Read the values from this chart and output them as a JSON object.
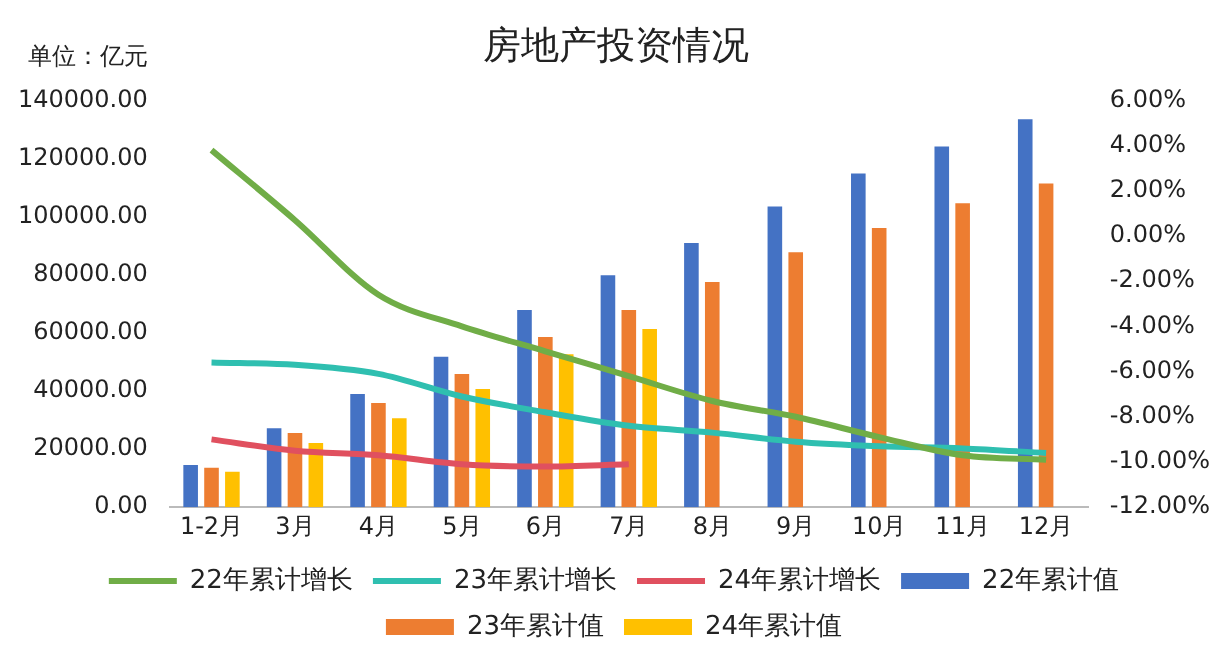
{
  "chart_data": {
    "type": "bar",
    "title": "房地产投资情况",
    "annotations": [
      "单位：亿元"
    ],
    "categories": [
      "1-2月",
      "3月",
      "4月",
      "5月",
      "6月",
      "7月",
      "8月",
      "9月",
      "10月",
      "11月",
      "12月"
    ],
    "series": [
      {
        "name": "22年累计值",
        "color": "#4472c4",
        "values": [
          14500,
          27200,
          39000,
          51800,
          67900,
          79800,
          90900,
          103500,
          114800,
          124100,
          133500
        ]
      },
      {
        "name": "23年累计值",
        "color": "#ed7d31",
        "values": [
          13600,
          25500,
          35900,
          45800,
          58600,
          67900,
          77500,
          87700,
          96100,
          104600,
          111400
        ]
      },
      {
        "name": "24年累计值",
        "color": "#ffc000",
        "values": [
          12200,
          22100,
          30600,
          40700,
          52600,
          61300,
          null,
          null,
          null,
          null,
          null
        ]
      },
      {
        "name": "22年累计增长",
        "type": "line",
        "axis": "y2",
        "color": "#70ad47",
        "values": [
          3.8,
          0.7,
          -2.6,
          -4.0,
          -5.1,
          -6.2,
          -7.3,
          -8.0,
          -8.9,
          -9.7,
          -9.9
        ]
      },
      {
        "name": "23年累计增长",
        "type": "line",
        "axis": "y2",
        "color": "#2fbfb0",
        "values": [
          -5.6,
          -5.7,
          -6.1,
          -7.1,
          -7.8,
          -8.4,
          -8.7,
          -9.1,
          -9.3,
          -9.4,
          -9.6
        ]
      },
      {
        "name": "24年累计增长",
        "type": "line",
        "axis": "y2",
        "color": "#e0505f",
        "values": [
          -9.0,
          -9.5,
          -9.7,
          -10.1,
          -10.2,
          -10.1,
          null,
          null,
          null,
          null,
          null
        ]
      }
    ],
    "ylim": [
      0,
      140000
    ],
    "yticks": [
      {
        "value": 0,
        "label": "0.00"
      },
      {
        "value": 20000,
        "label": "20000.00"
      },
      {
        "value": 40000,
        "label": "40000.00"
      },
      {
        "value": 60000,
        "label": "60000.00"
      },
      {
        "value": 80000,
        "label": "80000.00"
      },
      {
        "value": 100000,
        "label": "100000.00"
      },
      {
        "value": 120000,
        "label": "120000.00"
      },
      {
        "value": 140000,
        "label": "140000.00"
      }
    ],
    "y2lim": [
      -12,
      6
    ],
    "y2ticks": [
      {
        "value": -12,
        "label": "-12.00%"
      },
      {
        "value": -10,
        "label": "-10.00%"
      },
      {
        "value": -8,
        "label": "-8.00%"
      },
      {
        "value": -6,
        "label": "-6.00%"
      },
      {
        "value": -4,
        "label": "-4.00%"
      },
      {
        "value": -2,
        "label": "-2.00%"
      },
      {
        "value": 0,
        "label": "0.00%"
      },
      {
        "value": 2,
        "label": "2.00%"
      },
      {
        "value": 4,
        "label": "4.00%"
      },
      {
        "value": 6,
        "label": "6.00%"
      }
    ],
    "grid": false,
    "legend": "bottom",
    "marker": "none",
    "line_style": "solid"
  }
}
